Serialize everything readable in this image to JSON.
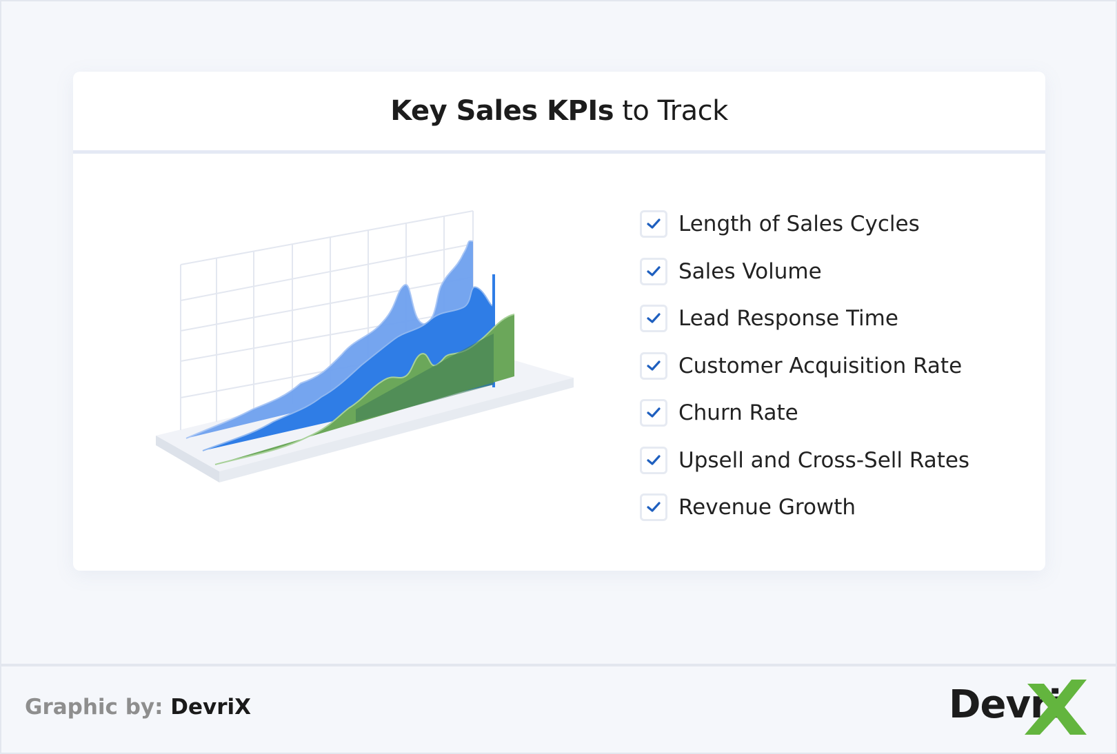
{
  "header": {
    "title_bold": "Key Sales KPIs",
    "title_light": " to Track"
  },
  "kpis": [
    "Length of Sales Cycles",
    "Sales Volume",
    "Lead Response Time",
    "Customer Acquisition Rate",
    "Churn Rate",
    "Upsell and Cross-Sell Rates",
    "Revenue Growth"
  ],
  "footer": {
    "credit_prefix": "Graphic by: ",
    "credit_brand": "DevriX",
    "logo_text": "Devri"
  },
  "colors": {
    "check": "#1e5fbf",
    "series_light_blue": "#6ea0ee",
    "series_blue": "#2f7de6",
    "series_green": "#6ba75a",
    "logo_x": "#63b53e"
  },
  "icons": {
    "checkbox": "check-icon",
    "logo_mark": "x-mark-icon"
  }
}
